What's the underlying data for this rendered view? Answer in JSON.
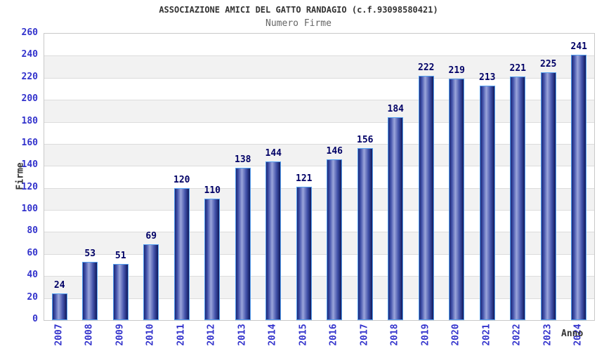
{
  "header": {
    "title": "ASSOCIAZIONE AMICI DEL GATTO RANDAGIO (c.f.93098580421)",
    "subtitle": "Numero Firme"
  },
  "axes": {
    "y_title": "Firme",
    "x_title": "Anno"
  },
  "chart_data": {
    "type": "bar",
    "title": "ASSOCIAZIONE AMICI DEL GATTO RANDAGIO (c.f.93098580421)",
    "subtitle": "Numero Firme",
    "xlabel": "Anno",
    "ylabel": "Firme",
    "categories": [
      "2007",
      "2008",
      "2009",
      "2010",
      "2011",
      "2012",
      "2013",
      "2014",
      "2015",
      "2016",
      "2017",
      "2018",
      "2019",
      "2020",
      "2021",
      "2022",
      "2023",
      "2024"
    ],
    "values": [
      24,
      53,
      51,
      69,
      120,
      110,
      138,
      144,
      121,
      146,
      156,
      184,
      222,
      219,
      213,
      221,
      225,
      241
    ],
    "ylim": [
      0,
      260
    ],
    "ytick_step": 20,
    "grid": true,
    "legend": "none",
    "value_labels_shown": true
  },
  "style": {
    "tick_label_color": "#3333cc",
    "value_label_color": "#000066",
    "title_color": "#333333",
    "subtitle_color": "#666666",
    "axis_title_color": "#333333",
    "plot_border_color": "#c9c9c9",
    "gridline_color": "#dcdcdc",
    "band_color_light": "#ffffff",
    "band_color_dark": "#f2f2f2",
    "bar_border_color": "#55a0f0",
    "bar_gradient": [
      "#1c2877",
      "#4353ab",
      "#9ba5db",
      "#4353ab",
      "#10195c"
    ]
  }
}
